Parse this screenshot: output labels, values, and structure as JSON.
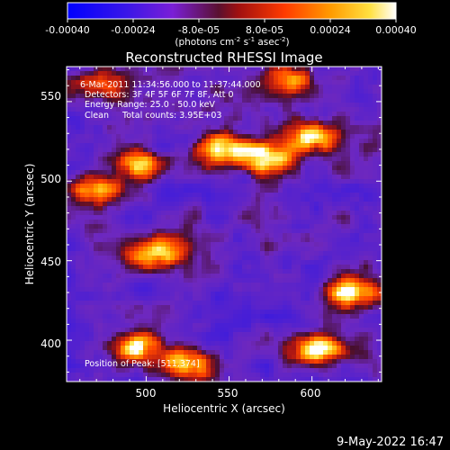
{
  "colorbar": {
    "ticks": [
      "-0.00040",
      "-0.00024",
      "-8.0e-05",
      "8.0e-05",
      "0.00024",
      "0.00040"
    ],
    "range": [
      -0.0004,
      0.0004
    ],
    "units_main": "(photons cm",
    "units_exp1": "-2",
    "units_mid": " s",
    "units_exp2": "-1",
    "units_end": " asec",
    "units_exp3": "-2",
    "units_close": ")",
    "colors": [
      "#0000ff",
      "#7a1fd6",
      "#c81a1a",
      "#ff6a00",
      "#ffc20a",
      "#ffffff"
    ]
  },
  "chart_data": {
    "type": "heatmap",
    "title": "Reconstructed RHESSI Image",
    "xlabel": "Heliocentric X (arcsec)",
    "ylabel": "Heliocentric Y (arcsec)",
    "xlim": [
      452,
      642
    ],
    "ylim": [
      374,
      572
    ],
    "xticks": [
      "500",
      "550",
      "600"
    ],
    "xtick_values": [
      500,
      550,
      600
    ],
    "yticks": [
      "400",
      "450",
      "500",
      "550"
    ],
    "ytick_values": [
      400,
      450,
      500,
      550
    ],
    "annotations": {
      "time_range": "6-Mar-2011 11:34:56.000 to 11:37:44.000",
      "detectors": "Detectors: 3F 4F 5F 6F 7F 8F, Att 0",
      "energy": "Energy Range: 25.0 - 50.0 keV",
      "clean": "Clean     Total counts: 3.95E+03",
      "peak": "Position of Peak: [511,374]"
    },
    "peak": [
      511,
      374
    ],
    "bright_regions": [
      {
        "x": 570,
        "y": 515,
        "level": 0.95
      },
      {
        "x": 545,
        "y": 520,
        "level": 0.8
      },
      {
        "x": 600,
        "y": 528,
        "level": 0.85
      },
      {
        "x": 495,
        "y": 510,
        "level": 0.7
      },
      {
        "x": 470,
        "y": 495,
        "level": 0.75
      },
      {
        "x": 505,
        "y": 455,
        "level": 0.85
      },
      {
        "x": 625,
        "y": 430,
        "level": 0.95
      },
      {
        "x": 605,
        "y": 395,
        "level": 0.9
      },
      {
        "x": 525,
        "y": 385,
        "level": 0.75
      },
      {
        "x": 495,
        "y": 395,
        "level": 0.7
      },
      {
        "x": 470,
        "y": 560,
        "level": 0.55
      },
      {
        "x": 585,
        "y": 565,
        "level": 0.6
      }
    ]
  },
  "footer": {
    "date": "9-May-2022 16:47"
  }
}
